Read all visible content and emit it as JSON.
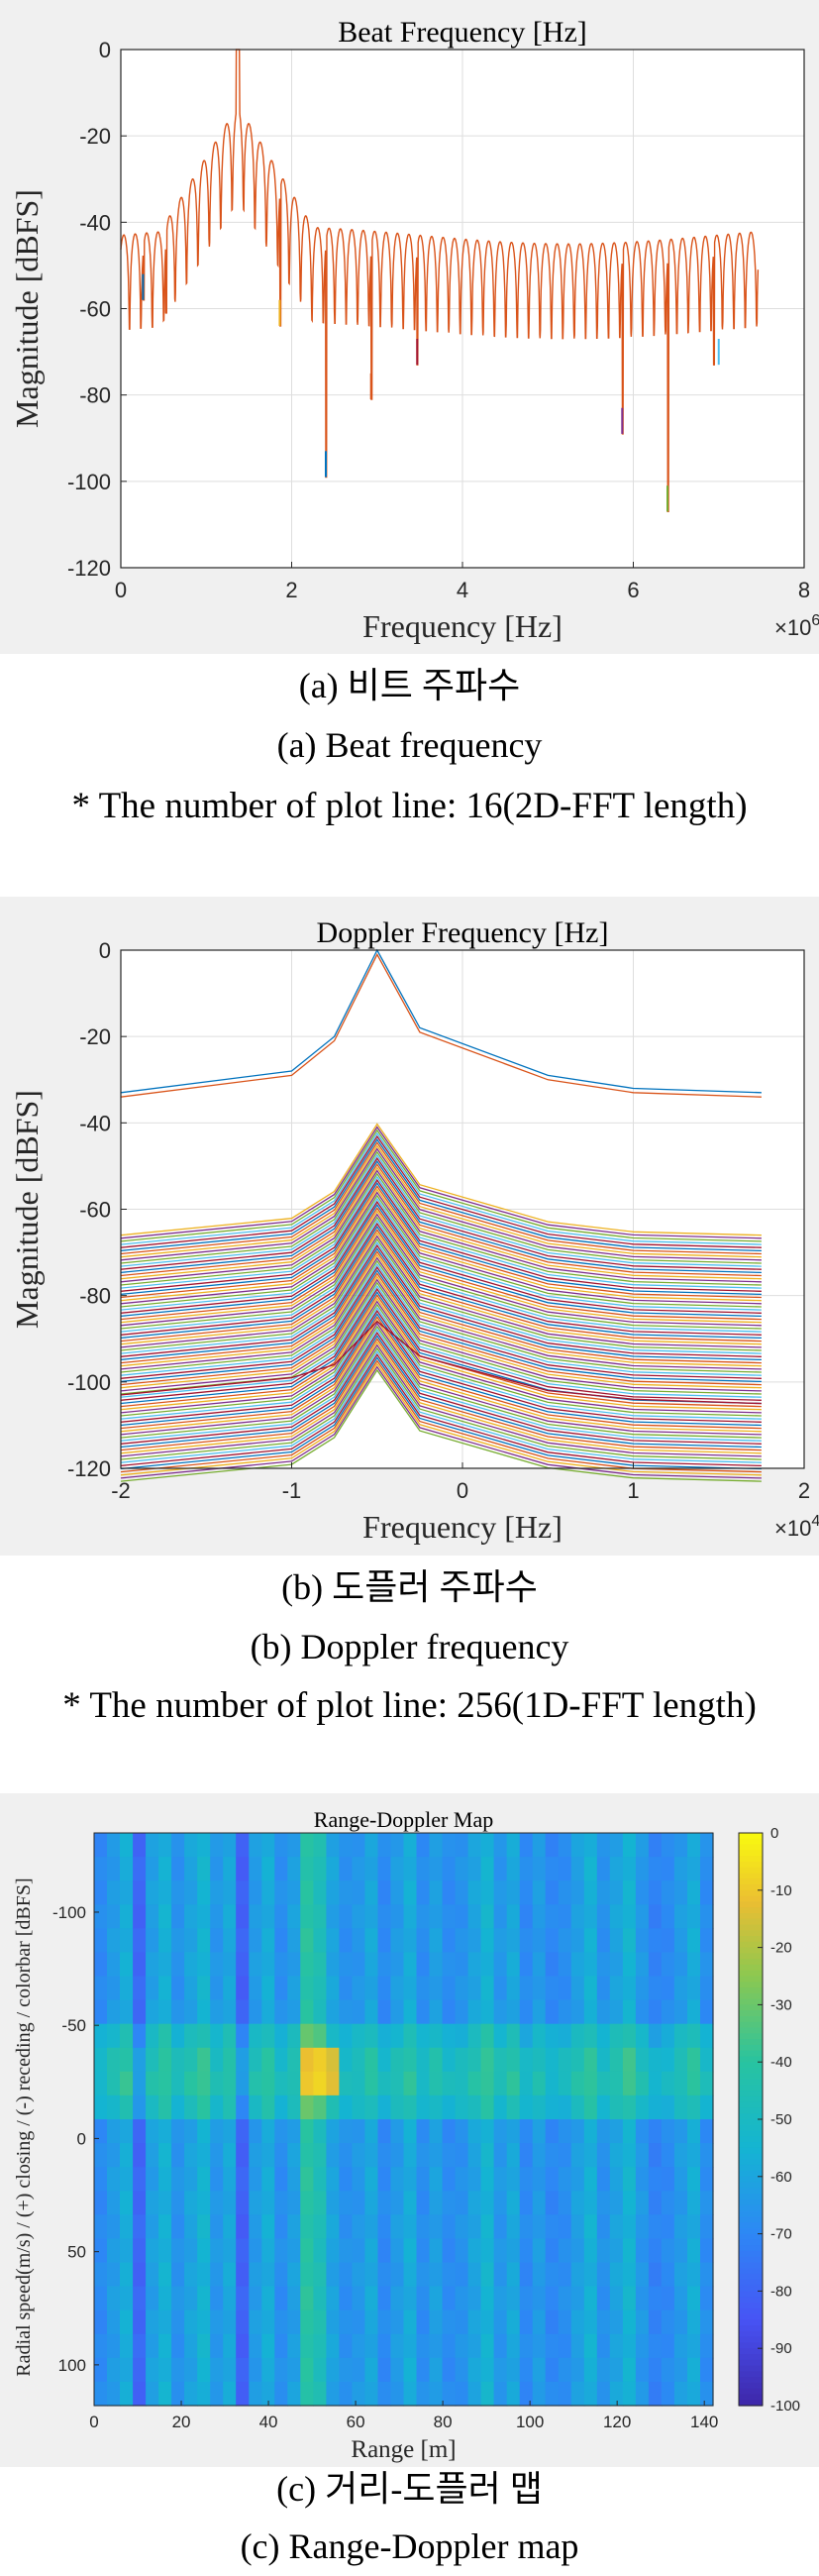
{
  "colors": {
    "plot_bg": "#ffffff",
    "panel_bg": "#f0f0f0",
    "beat_line": "#d95319",
    "matlab_order": [
      "#0072bd",
      "#d95319",
      "#edb120",
      "#7e2f8e",
      "#77ac30",
      "#4dbeee",
      "#a2142f"
    ]
  },
  "captions": {
    "a_korean": "(a) 비트 주파수",
    "a_english": "(a) Beat frequency",
    "a_note": "* The number of plot line: 16(2D-FFT length)",
    "b_korean": "(b) 도플러 주파수",
    "b_english": "(b) Doppler frequency",
    "b_note": "* The number of plot line: 256(1D-FFT length)",
    "c_korean": "(c) 거리-도플러 맵",
    "c_english": "(c) Range-Doppler map"
  },
  "chart_data": [
    {
      "type": "line",
      "title": "Beat Frequency [Hz]",
      "xlabel": "Frequency [Hz]",
      "ylabel": "Magnitude [dBFS]",
      "x_exponent_label": "×10",
      "x_exponent": "6",
      "xlim": [
        0,
        8
      ],
      "ylim": [
        -120,
        0
      ],
      "xticks": [
        0,
        2,
        4,
        6,
        8
      ],
      "yticks": [
        0,
        -20,
        -40,
        -60,
        -80,
        -100,
        -120
      ],
      "grid": true,
      "series_count": 16,
      "peak": {
        "x": 1.37,
        "y": 0
      },
      "sidelobes": [
        {
          "x": 1.25,
          "y": -17
        },
        {
          "x": 1.5,
          "y": -17
        },
        {
          "x": 1.13,
          "y": -24
        },
        {
          "x": 1.62,
          "y": -26
        }
      ],
      "floor_level": -43,
      "deep_nulls": [
        {
          "x": 2.4,
          "y": -99
        },
        {
          "x": 2.93,
          "y": -81
        },
        {
          "x": 1.86,
          "y": -64
        },
        {
          "x": 5.87,
          "y": -89
        },
        {
          "x": 6.4,
          "y": -107
        },
        {
          "x": 7.0,
          "y": -73
        },
        {
          "x": 3.47,
          "y": -73
        },
        {
          "x": 0.26,
          "y": -58
        },
        {
          "x": 0.53,
          "y": -61
        }
      ],
      "x_range_end": 7.46
    },
    {
      "type": "line",
      "title": "Doppler Frequency [Hz]",
      "xlabel": "Frequency [Hz]",
      "ylabel": "Magnitude [dBFS]",
      "x_exponent_label": "×10",
      "x_exponent": "4",
      "xlim": [
        -2,
        2
      ],
      "ylim": [
        -120,
        0
      ],
      "xticks": [
        -2,
        -1,
        0,
        1,
        2
      ],
      "yticks": [
        0,
        -20,
        -40,
        -60,
        -80,
        -100,
        -120
      ],
      "grid": true,
      "series_count": 256,
      "x": [
        -2.0,
        -1.0,
        -0.75,
        -0.5,
        -0.25,
        0.5,
        1.0,
        1.75
      ],
      "top_series": [
        -33,
        -28,
        -20,
        0,
        -18,
        -29,
        -32,
        -33
      ],
      "bottom_series": [
        -103,
        -99,
        -96,
        -86,
        -94,
        -102,
        -104,
        -105
      ],
      "band_top_offset": -50,
      "band_bottom_offset": -90
    },
    {
      "type": "heatmap",
      "title": "Range-Doppler Map",
      "xlabel": "Range [m]",
      "ylabel": "Radial speed(m/s) / (+) closing / (-) receding / colorbar [dBFS]",
      "xlim": [
        0,
        142
      ],
      "ylim": [
        -135,
        118
      ],
      "xticks": [
        0,
        20,
        40,
        60,
        80,
        100,
        120,
        140
      ],
      "yticks": [
        -100,
        -50,
        0,
        50,
        100
      ],
      "colorbar_ticks": [
        0,
        -10,
        -20,
        -30,
        -40,
        -50,
        -60,
        -70,
        -80,
        -90,
        -100
      ],
      "colorbar_range": [
        -100,
        0
      ],
      "peak": {
        "range": 51,
        "speed": -28,
        "value": 0
      },
      "background_value": -62
    }
  ]
}
